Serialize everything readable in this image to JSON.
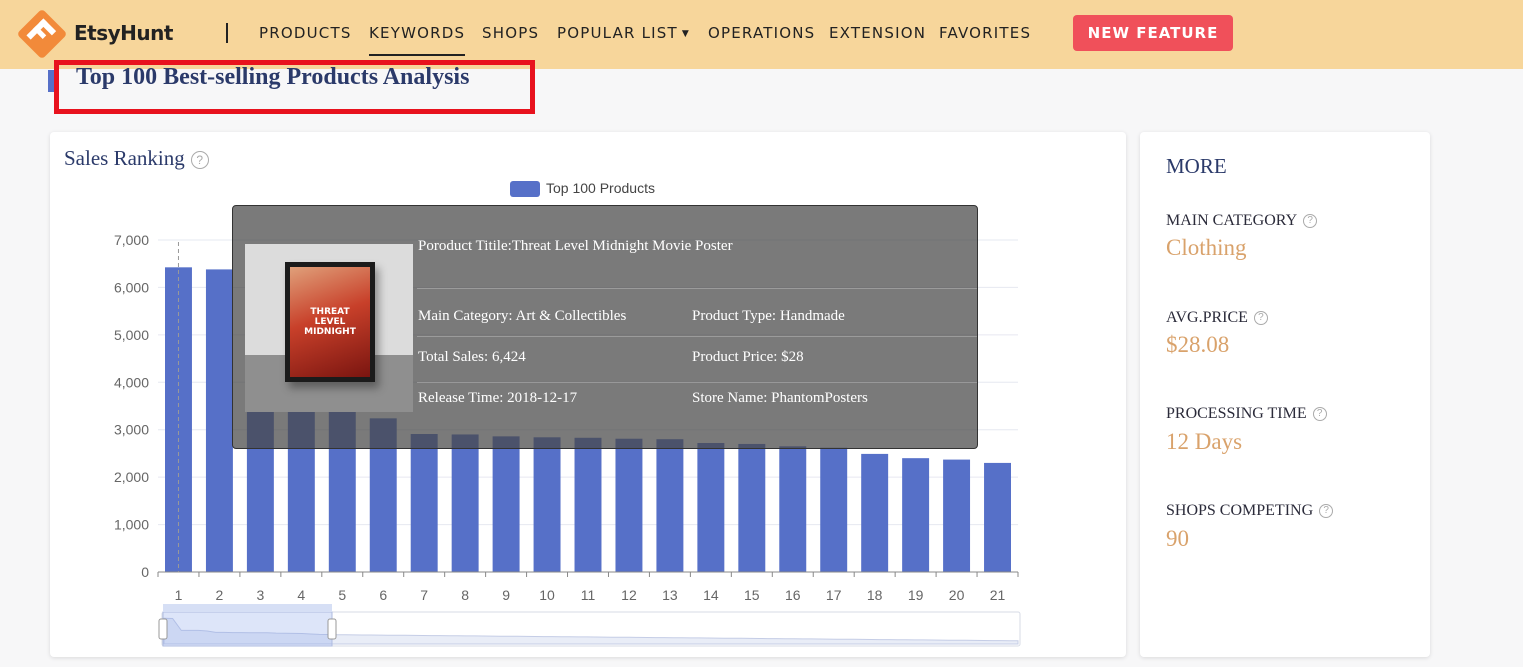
{
  "brand": {
    "name": "EtsyHunt"
  },
  "nav": {
    "items": [
      "PRODUCTS",
      "KEYWORDS",
      "SHOPS",
      "POPULAR LIST",
      "OPERATIONS",
      "EXTENSION",
      "FAVORITES"
    ],
    "active": "KEYWORDS",
    "new_feature": "NEW FEATURE"
  },
  "page": {
    "title": "Top 100 Best-selling Products Analysis"
  },
  "sales_ranking": {
    "title": "Sales Ranking"
  },
  "chart_data": {
    "type": "bar",
    "title": "Sales Ranking",
    "series": [
      {
        "name": "Top 100 Products",
        "values": [
          6424,
          6380,
          3410,
          3410,
          3410,
          3240,
          2910,
          2900,
          2860,
          2840,
          2830,
          2810,
          2800,
          2720,
          2700,
          2650,
          2620,
          2490,
          2400,
          2370,
          2300
        ]
      }
    ],
    "categories": [
      "1",
      "2",
      "3",
      "4",
      "5",
      "6",
      "7",
      "8",
      "9",
      "10",
      "11",
      "12",
      "13",
      "14",
      "15",
      "16",
      "17",
      "18",
      "19",
      "20",
      "21"
    ],
    "y_ticks": [
      "0",
      "1,000",
      "2,000",
      "3,000",
      "4,000",
      "5,000",
      "6,000",
      "7,000"
    ],
    "ylim": [
      0,
      7000
    ],
    "grid": true,
    "legend_position": "top-center",
    "color": "#5670c8"
  },
  "tooltip": {
    "product_title": "Poroduct Titile:Threat Level Midnight Movie Poster",
    "main_category": "Main Category: Art & Collectibles",
    "product_type": "Product Type: Handmade",
    "total_sales": "Total Sales: 6,424",
    "product_price": "Product Price: $28",
    "release_time": "Release Time: 2018-12-17",
    "store_name": "Store Name: PhantomPosters",
    "poster_text": "THREAT LEVEL MIDNIGHT"
  },
  "more": {
    "title": "MORE",
    "items": [
      {
        "label": "MAIN CATEGORY",
        "value": "Clothing"
      },
      {
        "label": "AVG.PRICE",
        "value": "$28.08"
      },
      {
        "label": "PROCESSING TIME",
        "value": "12 Days"
      },
      {
        "label": "SHOPS COMPETING",
        "value": "90"
      }
    ]
  }
}
